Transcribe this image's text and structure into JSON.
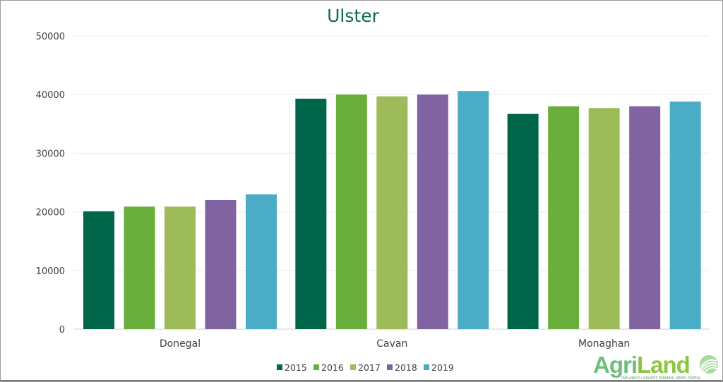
{
  "chart_data": {
    "type": "bar",
    "title": "Ulster",
    "categories": [
      "Donegal",
      "Cavan",
      "Monaghan"
    ],
    "series": [
      {
        "name": "2015",
        "color": "#00664a",
        "values": [
          20100,
          39300,
          36700
        ]
      },
      {
        "name": "2016",
        "color": "#6aaf3c",
        "values": [
          20900,
          40000,
          38000
        ]
      },
      {
        "name": "2017",
        "color": "#9dbb58",
        "values": [
          20900,
          39700,
          37700
        ]
      },
      {
        "name": "2018",
        "color": "#8064a2",
        "values": [
          22000,
          40000,
          38000
        ]
      },
      {
        "name": "2019",
        "color": "#4bacc6",
        "values": [
          23000,
          40600,
          38800
        ]
      }
    ],
    "ylim": [
      0,
      50000
    ],
    "yticks": [
      "0",
      "10000",
      "20000",
      "30000",
      "40000",
      "50000"
    ],
    "grid": true,
    "legend": "bottom"
  },
  "logo": {
    "text_1": "Agri",
    "text_2": "Land",
    "tagline": "IRELAND'S LARGEST FARMING NEWS PORTAL"
  }
}
